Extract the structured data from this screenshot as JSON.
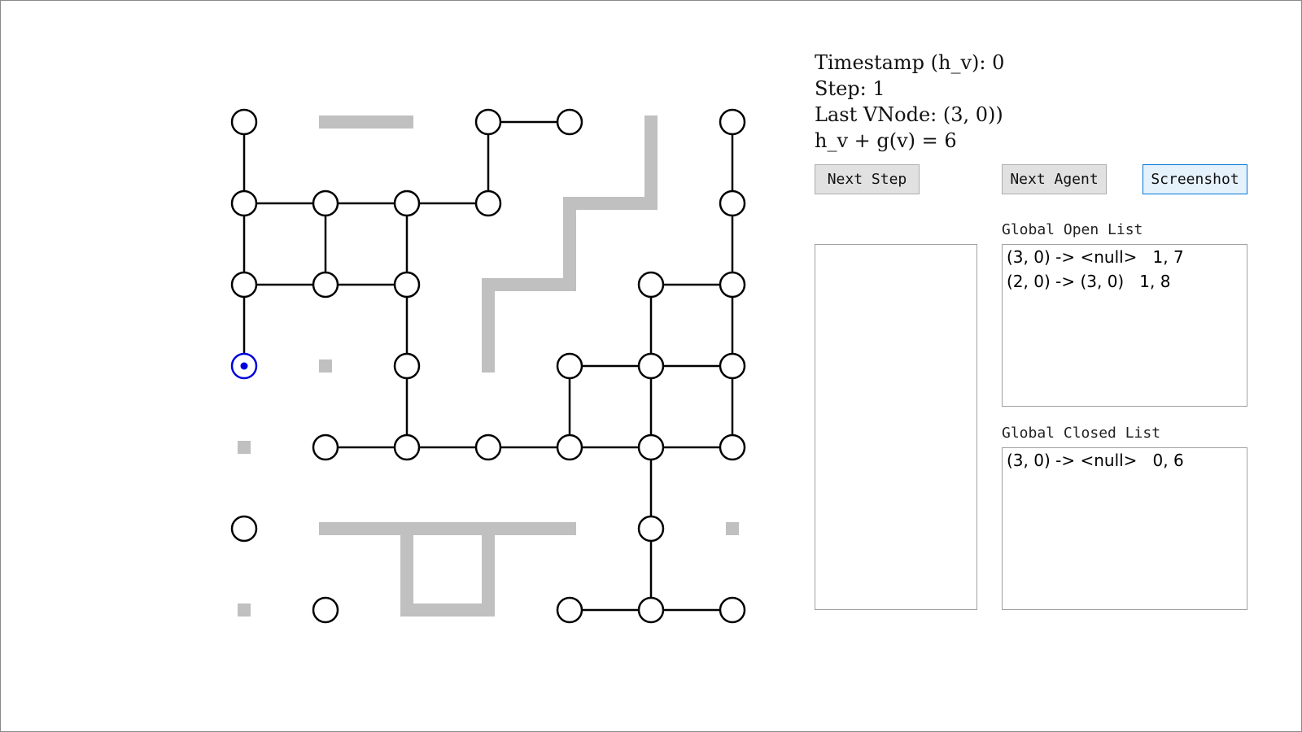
{
  "info": {
    "timestamp": "Timestamp (h_v): 0",
    "step": "Step: 1",
    "last_vnode": "Last VNode: (3, 0))",
    "cost": "h_v + g(v) = 6"
  },
  "buttons": {
    "next_step": "Next Step",
    "next_agent": "Next Agent",
    "screenshot": "Screenshot"
  },
  "open_list": {
    "label": "Global Open List",
    "rows": [
      "(3, 0) -> <null>   1, 7",
      "(2, 0) -> (3, 0)   1, 8"
    ]
  },
  "closed_list": {
    "label": "Global Closed List",
    "rows": [
      "(3, 0) -> <null>   0, 6"
    ]
  },
  "colors": {
    "node_stroke": "#000000",
    "agent": "#0000e0",
    "wall": "#c0c0c0"
  },
  "grid": {
    "cols": 7,
    "rows": 7,
    "nodes": [
      [
        0,
        0
      ],
      [
        3,
        0
      ],
      [
        4,
        0
      ],
      [
        6,
        0
      ],
      [
        0,
        1
      ],
      [
        1,
        1
      ],
      [
        2,
        1
      ],
      [
        3,
        1
      ],
      [
        6,
        1
      ],
      [
        0,
        2
      ],
      [
        1,
        2
      ],
      [
        2,
        2
      ],
      [
        5,
        2
      ],
      [
        6,
        2
      ],
      [
        2,
        3
      ],
      [
        4,
        3
      ],
      [
        5,
        3
      ],
      [
        6,
        3
      ],
      [
        1,
        4
      ],
      [
        2,
        4
      ],
      [
        3,
        4
      ],
      [
        4,
        4
      ],
      [
        5,
        4
      ],
      [
        6,
        4
      ],
      [
        0,
        5
      ],
      [
        5,
        5
      ],
      [
        1,
        6
      ],
      [
        4,
        6
      ],
      [
        5,
        6
      ],
      [
        6,
        6
      ]
    ],
    "edges": [
      [
        [
          0,
          0
        ],
        [
          0,
          1
        ]
      ],
      [
        [
          3,
          0
        ],
        [
          4,
          0
        ]
      ],
      [
        [
          3,
          0
        ],
        [
          3,
          1
        ]
      ],
      [
        [
          6,
          0
        ],
        [
          6,
          1
        ]
      ],
      [
        [
          0,
          1
        ],
        [
          1,
          1
        ]
      ],
      [
        [
          1,
          1
        ],
        [
          2,
          1
        ]
      ],
      [
        [
          2,
          1
        ],
        [
          3,
          1
        ]
      ],
      [
        [
          0,
          1
        ],
        [
          0,
          2
        ]
      ],
      [
        [
          1,
          1
        ],
        [
          1,
          2
        ]
      ],
      [
        [
          2,
          1
        ],
        [
          2,
          2
        ]
      ],
      [
        [
          6,
          1
        ],
        [
          6,
          2
        ]
      ],
      [
        [
          0,
          2
        ],
        [
          1,
          2
        ]
      ],
      [
        [
          1,
          2
        ],
        [
          2,
          2
        ]
      ],
      [
        [
          5,
          2
        ],
        [
          6,
          2
        ]
      ],
      [
        [
          0,
          2
        ],
        [
          0,
          3
        ]
      ],
      [
        [
          2,
          2
        ],
        [
          2,
          3
        ]
      ],
      [
        [
          5,
          2
        ],
        [
          5,
          3
        ]
      ],
      [
        [
          6,
          2
        ],
        [
          6,
          3
        ]
      ],
      [
        [
          4,
          3
        ],
        [
          5,
          3
        ]
      ],
      [
        [
          5,
          3
        ],
        [
          6,
          3
        ]
      ],
      [
        [
          2,
          3
        ],
        [
          2,
          4
        ]
      ],
      [
        [
          4,
          3
        ],
        [
          4,
          4
        ]
      ],
      [
        [
          5,
          3
        ],
        [
          5,
          4
        ]
      ],
      [
        [
          6,
          3
        ],
        [
          6,
          4
        ]
      ],
      [
        [
          1,
          4
        ],
        [
          2,
          4
        ]
      ],
      [
        [
          2,
          4
        ],
        [
          3,
          4
        ]
      ],
      [
        [
          3,
          4
        ],
        [
          4,
          4
        ]
      ],
      [
        [
          4,
          4
        ],
        [
          5,
          4
        ]
      ],
      [
        [
          5,
          4
        ],
        [
          6,
          4
        ]
      ],
      [
        [
          5,
          4
        ],
        [
          5,
          5
        ]
      ],
      [
        [
          5,
          5
        ],
        [
          5,
          6
        ]
      ],
      [
        [
          4,
          6
        ],
        [
          5,
          6
        ]
      ],
      [
        [
          5,
          6
        ],
        [
          6,
          6
        ]
      ]
    ],
    "walls": [
      [
        [
          1,
          0
        ],
        [
          2,
          0
        ]
      ],
      [
        [
          5,
          0
        ],
        [
          5,
          1
        ]
      ],
      [
        [
          4,
          1
        ],
        [
          5,
          1
        ]
      ],
      [
        [
          4,
          1
        ],
        [
          4,
          2
        ]
      ],
      [
        [
          3,
          2
        ],
        [
          4,
          2
        ]
      ],
      [
        [
          3,
          2
        ],
        [
          3,
          3
        ]
      ],
      [
        [
          1,
          5
        ],
        [
          4,
          5
        ]
      ],
      [
        [
          2,
          5
        ],
        [
          2,
          6
        ]
      ],
      [
        [
          3,
          5
        ],
        [
          3,
          6
        ]
      ],
      [
        [
          2,
          6
        ],
        [
          3,
          6
        ]
      ]
    ],
    "blocks": [
      [
        1,
        3
      ],
      [
        0,
        4
      ],
      [
        6,
        5
      ],
      [
        0,
        6
      ]
    ],
    "agent": [
      0,
      3
    ]
  }
}
